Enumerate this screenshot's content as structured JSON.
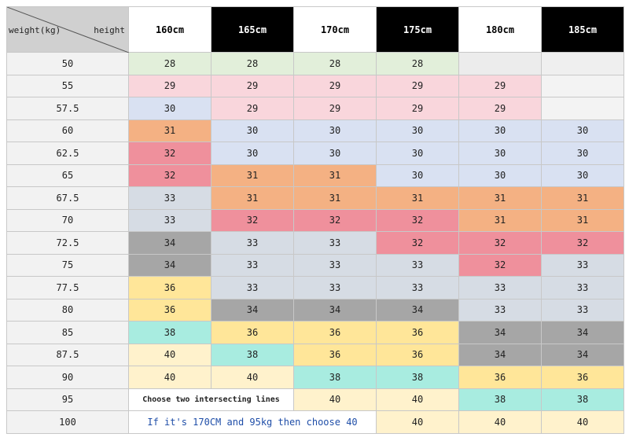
{
  "header": {
    "corner_weight": "weight(kg)",
    "corner_height": "height",
    "heights": [
      "160cm",
      "165cm",
      "170cm",
      "175cm",
      "180cm",
      "185cm"
    ],
    "colors": [
      "#ffffff",
      "#000000",
      "#ffffff",
      "#000000",
      "#ffffff",
      "#000000"
    ]
  },
  "rows": [
    {
      "weight": "50",
      "cells": [
        28,
        28,
        28,
        28,
        null,
        null
      ],
      "colors": [
        "#e2efda",
        "#e2efda",
        "#e2efda",
        "#e2efda",
        "#ececec",
        "#efefef"
      ]
    },
    {
      "weight": "55",
      "cells": [
        29,
        29,
        29,
        29,
        29,
        null
      ],
      "colors": [
        "#f9d6dc",
        "#f9d6dc",
        "#f9d6dc",
        "#f9d6dc",
        "#f9d6dc",
        "#f3f3f3"
      ]
    },
    {
      "weight": "57.5",
      "cells": [
        30,
        29,
        29,
        29,
        29,
        null
      ],
      "colors": [
        "#d9e1f2",
        "#f9d6dc",
        "#f9d6dc",
        "#f9d6dc",
        "#f9d6dc",
        "#f3f3f3"
      ]
    },
    {
      "weight": "60",
      "cells": [
        31,
        30,
        30,
        30,
        30,
        30
      ],
      "colors": [
        "#f4b183",
        "#d9e1f2",
        "#d9e1f2",
        "#d9e1f2",
        "#d9e1f2",
        "#d9e1f2"
      ]
    },
    {
      "weight": "62.5",
      "cells": [
        32,
        30,
        30,
        30,
        30,
        30
      ],
      "colors": [
        "#ef909c",
        "#d9e1f2",
        "#d9e1f2",
        "#d9e1f2",
        "#d9e1f2",
        "#d9e1f2"
      ]
    },
    {
      "weight": "65",
      "cells": [
        32,
        31,
        31,
        30,
        30,
        30
      ],
      "colors": [
        "#ef909c",
        "#f4b183",
        "#f4b183",
        "#d9e1f2",
        "#d9e1f2",
        "#d9e1f2"
      ]
    },
    {
      "weight": "67.5",
      "cells": [
        33,
        31,
        31,
        31,
        31,
        31
      ],
      "colors": [
        "#d6dce4",
        "#f4b183",
        "#f4b183",
        "#f4b183",
        "#f4b183",
        "#f4b183"
      ]
    },
    {
      "weight": "70",
      "cells": [
        33,
        32,
        32,
        32,
        31,
        31
      ],
      "colors": [
        "#d6dce4",
        "#ef909c",
        "#ef909c",
        "#ef909c",
        "#f4b183",
        "#f4b183"
      ]
    },
    {
      "weight": "72.5",
      "cells": [
        34,
        33,
        33,
        32,
        32,
        32
      ],
      "colors": [
        "#a6a6a6",
        "#d6dce4",
        "#d6dce4",
        "#ef909c",
        "#ef909c",
        "#ef909c"
      ]
    },
    {
      "weight": "75",
      "cells": [
        34,
        33,
        33,
        33,
        32,
        33
      ],
      "colors": [
        "#a6a6a6",
        "#d6dce4",
        "#d6dce4",
        "#d6dce4",
        "#ef909c",
        "#d6dce4"
      ]
    },
    {
      "weight": "77.5",
      "cells": [
        36,
        33,
        33,
        33,
        33,
        33
      ],
      "colors": [
        "#ffe699",
        "#d6dce4",
        "#d6dce4",
        "#d6dce4",
        "#d6dce4",
        "#d6dce4"
      ]
    },
    {
      "weight": "80",
      "cells": [
        36,
        34,
        34,
        34,
        33,
        33
      ],
      "colors": [
        "#ffe699",
        "#a6a6a6",
        "#a6a6a6",
        "#a6a6a6",
        "#d6dce4",
        "#d6dce4"
      ]
    },
    {
      "weight": "85",
      "cells": [
        38,
        36,
        36,
        36,
        34,
        34
      ],
      "colors": [
        "#a8ece0",
        "#ffe699",
        "#ffe699",
        "#ffe699",
        "#a6a6a6",
        "#a6a6a6"
      ]
    },
    {
      "weight": "87.5",
      "cells": [
        40,
        38,
        36,
        36,
        34,
        34
      ],
      "colors": [
        "#fff2cc",
        "#a8ece0",
        "#ffe699",
        "#ffe699",
        "#a6a6a6",
        "#a6a6a6"
      ]
    },
    {
      "weight": "90",
      "cells": [
        40,
        40,
        38,
        38,
        36,
        36
      ],
      "colors": [
        "#fff2cc",
        "#fff2cc",
        "#a8ece0",
        "#a8ece0",
        "#ffe699",
        "#ffe699"
      ]
    },
    {
      "weight": "95",
      "note": "Choose two intersecting lines",
      "cells": [
        40,
        40,
        38,
        38
      ],
      "colors": [
        "#fff2cc",
        "#fff2cc",
        "#a8ece0",
        "#a8ece0"
      ]
    },
    {
      "weight": "100",
      "note": "If it's 170CM and 95kg  then choose 40",
      "cells": [
        40,
        40,
        40
      ],
      "colors": [
        "#fff2cc",
        "#fff2cc",
        "#fff2cc"
      ]
    }
  ]
}
